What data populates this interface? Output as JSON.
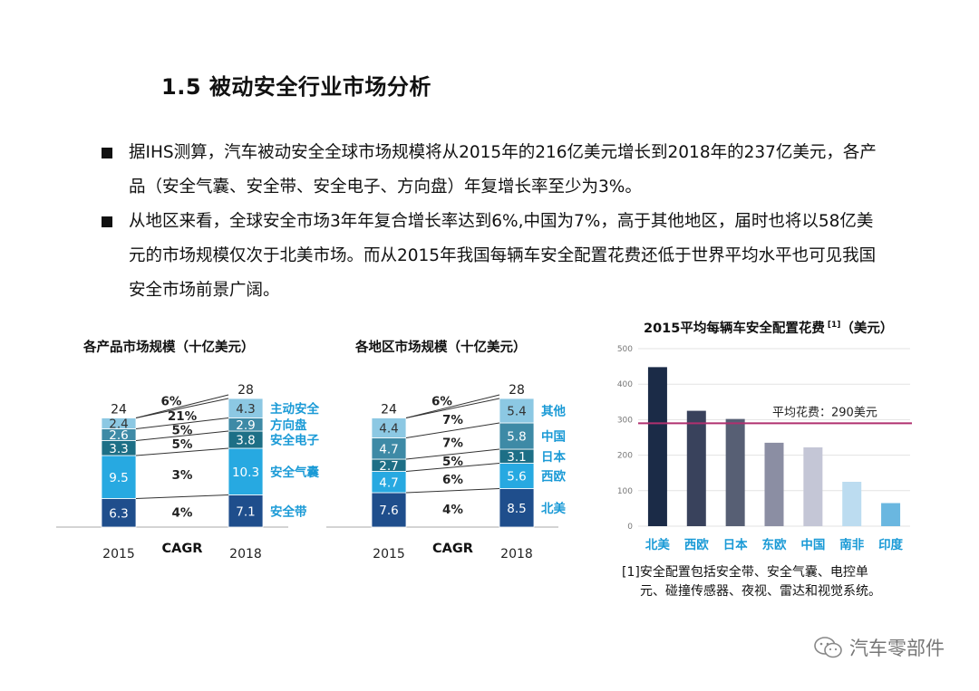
{
  "title": "1.5 被动安全行业市场分析",
  "bullets": [
    {
      "lines": [
        "据IHS测算，汽车被动安全全球市场规模将从2015年的216亿美元增长到2018年的237亿美元，各产",
        "品（安全气囊、安全带、安全电子、方向盘）年复增长率至少为3%。"
      ]
    },
    {
      "lines": [
        "从地区来看，全球安全市场3年年复合增长率达到6%,中国为7%，高于其他地区，届时也将以58亿美",
        "元的市场规模仅次于北美市场。而从2015年我国每辆车安全配置花费还低于世界平均水平也可见我国",
        "安全市场前景广阔。"
      ]
    }
  ],
  "colors": {
    "navy": "#1f4e8c",
    "sky": "#27a9e1",
    "teal": "#1d6f86",
    "steel": "#3e8aa6",
    "pale": "#8cc8e3",
    "label_blue": "#1a9ad6",
    "avg_line": "#b0306f"
  },
  "chart_data": [
    {
      "type": "bar",
      "stacked": true,
      "title": "各产品市场规模（十亿美元）",
      "categories": [
        "2015",
        "2018"
      ],
      "cagr_label": "CAGR",
      "totals": [
        "24",
        "28"
      ],
      "total_cagr": "6%",
      "series": [
        {
          "name": "安全带",
          "values": [
            6.3,
            7.1
          ],
          "cagr": "4%",
          "color": "navy"
        },
        {
          "name": "安全气囊",
          "values": [
            9.5,
            10.3
          ],
          "cagr": "3%",
          "color": "sky"
        },
        {
          "name": "安全电子",
          "values": [
            3.3,
            3.8
          ],
          "cagr": "5%",
          "color": "teal"
        },
        {
          "name": "方向盘",
          "values": [
            2.6,
            2.9
          ],
          "cagr": "5%",
          "color": "steel"
        },
        {
          "name": "主动安全",
          "values": [
            2.4,
            4.3
          ],
          "cagr": "21%",
          "color": "pale"
        }
      ]
    },
    {
      "type": "bar",
      "stacked": true,
      "title": "各地区市场规模（十亿美元）",
      "categories": [
        "2015",
        "2018"
      ],
      "cagr_label": "CAGR",
      "totals": [
        "24",
        "28"
      ],
      "total_cagr": "6%",
      "series": [
        {
          "name": "北美",
          "values": [
            7.6,
            8.5
          ],
          "cagr": "4%",
          "color": "navy"
        },
        {
          "name": "西欧",
          "values": [
            4.7,
            5.6
          ],
          "cagr": "6%",
          "color": "sky"
        },
        {
          "name": "日本",
          "values": [
            2.7,
            3.1
          ],
          "cagr": "5%",
          "color": "teal"
        },
        {
          "name": "中国",
          "values": [
            4.7,
            5.8
          ],
          "cagr": "7%",
          "color": "steel"
        },
        {
          "name": "其他",
          "values": [
            4.4,
            5.4
          ],
          "cagr": "7%",
          "color": "pale"
        }
      ]
    },
    {
      "type": "bar",
      "title": "2015平均每辆车安全配置花费",
      "title_note": "[1]",
      "title_unit": "（美元）",
      "categories": [
        "北美",
        "西欧",
        "日本",
        "东欧",
        "中国",
        "南非",
        "印度"
      ],
      "values": [
        448,
        325,
        302,
        235,
        222,
        125,
        65
      ],
      "bar_colors": [
        "#1b2b47",
        "#39425c",
        "#575f74",
        "#8b8ea3",
        "#c4c6d6",
        "#bcdcf0",
        "#6ab7e0"
      ],
      "ylim": [
        0,
        500
      ],
      "yticks": [
        0,
        100,
        200,
        300,
        400,
        500
      ],
      "grid": true,
      "reference_line": {
        "value": 290,
        "label": "平均花费：290美元"
      }
    }
  ],
  "footnote": [
    "[1]安全配置包括安全带、安全气囊、电控单",
    "元、碰撞传感器、夜视、雷达和视觉系统。"
  ],
  "watermark": "汽车零部件"
}
